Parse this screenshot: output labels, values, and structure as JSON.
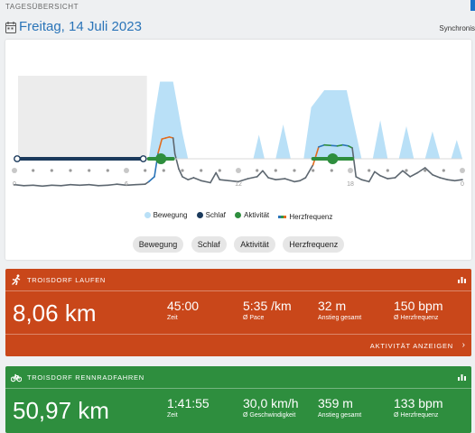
{
  "header": {
    "page_label": "TAGESÜBERSICHT",
    "date_title": "Freitag, 14 Juli 2023",
    "sync_label": "Synchronis",
    "calendar_icon": "calendar-icon"
  },
  "colors": {
    "accent": "#2a74b8",
    "bewegung": "#b9e0f7",
    "schlaf": "#1b3a5c",
    "aktivitaet": "#2e8e3e",
    "herzfrequenz": "#e26b1d",
    "run_card": "#c9471a",
    "bike_card": "#2e8e3e"
  },
  "chart_data": {
    "type": "line",
    "x_ticks": [
      "0",
      "6",
      "12",
      "18",
      "0"
    ],
    "x_range": [
      0,
      24
    ],
    "series": [
      {
        "name": "Herzfrequenz",
        "points": [
          [
            0,
            56
          ],
          [
            0.5,
            54
          ],
          [
            1,
            55
          ],
          [
            1.5,
            53
          ],
          [
            2,
            55
          ],
          [
            2.5,
            54
          ],
          [
            3,
            56
          ],
          [
            3.5,
            55
          ],
          [
            4,
            56
          ],
          [
            4.5,
            54
          ],
          [
            5,
            55
          ],
          [
            5.5,
            57
          ],
          [
            6,
            55
          ],
          [
            6.5,
            56
          ],
          [
            7,
            57
          ],
          [
            7.2,
            62
          ],
          [
            7.5,
            72
          ],
          [
            7.7,
            120
          ],
          [
            7.9,
            148
          ],
          [
            8.1,
            150
          ],
          [
            8.3,
            152
          ],
          [
            8.5,
            150
          ],
          [
            8.6,
            118
          ],
          [
            8.8,
            88
          ],
          [
            9,
            72
          ],
          [
            9.3,
            66
          ],
          [
            9.6,
            70
          ],
          [
            10,
            64
          ],
          [
            10.5,
            60
          ],
          [
            10.8,
            80
          ],
          [
            11,
            66
          ],
          [
            11.5,
            64
          ],
          [
            12,
            62
          ],
          [
            12.5,
            68
          ],
          [
            13,
            72
          ],
          [
            13.3,
            84
          ],
          [
            13.6,
            70
          ],
          [
            14,
            66
          ],
          [
            14.5,
            68
          ],
          [
            15,
            62
          ],
          [
            15.3,
            64
          ],
          [
            15.6,
            70
          ],
          [
            16,
            96
          ],
          [
            16.3,
            132
          ],
          [
            16.6,
            136
          ],
          [
            17,
            135
          ],
          [
            17.3,
            134
          ],
          [
            17.6,
            136
          ],
          [
            17.9,
            134
          ],
          [
            18.1,
            130
          ],
          [
            18.3,
            72
          ],
          [
            18.6,
            66
          ],
          [
            19,
            62
          ],
          [
            19.3,
            82
          ],
          [
            19.6,
            74
          ],
          [
            20,
            68
          ],
          [
            20.4,
            70
          ],
          [
            20.8,
            84
          ],
          [
            21.2,
            72
          ],
          [
            21.6,
            80
          ],
          [
            22,
            90
          ],
          [
            22.4,
            76
          ],
          [
            22.8,
            70
          ],
          [
            23.2,
            66
          ],
          [
            23.6,
            64
          ],
          [
            24,
            66
          ]
        ]
      },
      {
        "name": "Bewegung",
        "points": [
          [
            7.2,
            0
          ],
          [
            7.5,
            50
          ],
          [
            7.8,
            90
          ],
          [
            8.5,
            90
          ],
          [
            9,
            30
          ],
          [
            9.3,
            0
          ],
          [
            12.8,
            0
          ],
          [
            13.1,
            28
          ],
          [
            13.4,
            0
          ],
          [
            14,
            0
          ],
          [
            14.4,
            40
          ],
          [
            14.8,
            0
          ],
          [
            15.5,
            0
          ],
          [
            15.9,
            60
          ],
          [
            16.6,
            80
          ],
          [
            17.8,
            80
          ],
          [
            18.3,
            30
          ],
          [
            18.6,
            0
          ],
          [
            19.2,
            0
          ],
          [
            19.6,
            45
          ],
          [
            20,
            0
          ],
          [
            20.6,
            0
          ],
          [
            21,
            38
          ],
          [
            21.4,
            0
          ],
          [
            22,
            0
          ],
          [
            22.4,
            32
          ],
          [
            22.8,
            0
          ],
          [
            23.4,
            0
          ],
          [
            23.7,
            22
          ],
          [
            24,
            0
          ]
        ]
      }
    ],
    "sleep_range": [
      0,
      7
    ],
    "activities": [
      {
        "start": 7.2,
        "end": 8.5,
        "icon": "running-icon"
      },
      {
        "start": 16.0,
        "end": 18.1,
        "icon": "bike-icon"
      }
    ],
    "legend": [
      "Bewegung",
      "Schlaf",
      "Aktivität",
      "Herzfrequenz"
    ],
    "legend_placement": "bottom"
  },
  "filters": [
    "Bewegung",
    "Schlaf",
    "Aktivität",
    "Herzfrequenz"
  ],
  "activities": [
    {
      "name": "TROISDORF LAUFEN",
      "icon": "running-icon",
      "distance": "8,06 km",
      "stats": [
        {
          "value": "45:00",
          "label": "Zeit"
        },
        {
          "value": "5:35 /km",
          "label": "Ø Pace"
        },
        {
          "value": "32 m",
          "label": "Anstieg gesamt"
        },
        {
          "value": "150 bpm",
          "label": "Ø Herzfrequenz"
        }
      ],
      "footer_link": "AKTIVITÄT ANZEIGEN"
    },
    {
      "name": "TROISDORF RENNRADFAHREN",
      "icon": "bike-icon",
      "distance": "50,97 km",
      "stats": [
        {
          "value": "1:41:55",
          "label": "Zeit"
        },
        {
          "value": "30,0 km/h",
          "label": "Ø Geschwindigkeit"
        },
        {
          "value": "359 m",
          "label": "Anstieg gesamt"
        },
        {
          "value": "133 bpm",
          "label": "Ø Herzfrequenz"
        }
      ]
    }
  ]
}
